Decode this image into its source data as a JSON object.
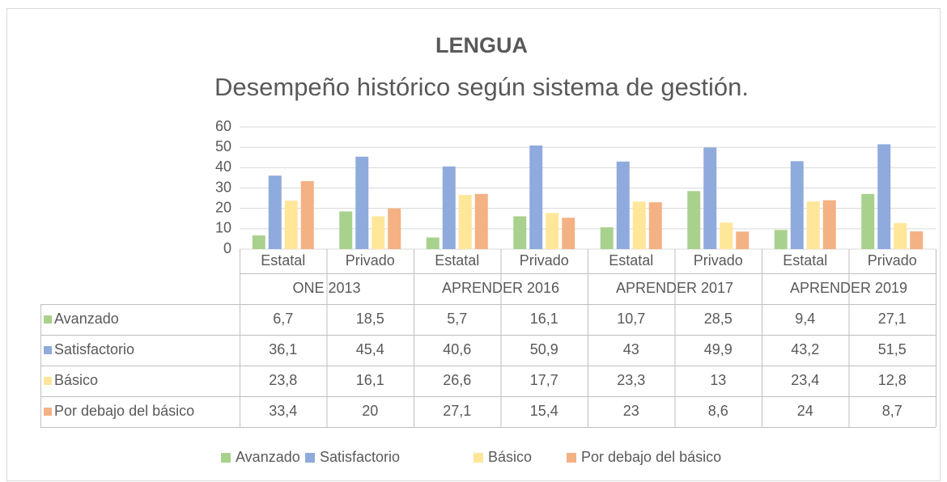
{
  "chart_data": {
    "type": "bar",
    "title": "LENGUA",
    "subtitle": "Desempeño histórico según sistema de gestión.",
    "categories": [
      "Estatal",
      "Privado",
      "Estatal",
      "Privado",
      "Estatal",
      "Privado",
      "Estatal",
      "Privado"
    ],
    "groups": [
      "ONE 2013",
      "APRENDER 2016",
      "APRENDER 2017",
      "APRENDER 2019"
    ],
    "series": [
      {
        "name": "Avanzado",
        "color": "#a9d18e",
        "values": [
          6.7,
          18.5,
          5.7,
          16.1,
          10.7,
          28.5,
          9.4,
          27.1
        ],
        "value_labels": [
          "6,7",
          "18,5",
          "5,7",
          "16,1",
          "10,7",
          "28,5",
          "9,4",
          "27,1"
        ]
      },
      {
        "name": "Satisfactorio",
        "color": "#8faadc",
        "values": [
          36.1,
          45.4,
          40.6,
          50.9,
          43,
          49.9,
          43.2,
          51.5
        ],
        "value_labels": [
          "36,1",
          "45,4",
          "40,6",
          "50,9",
          "43",
          "49,9",
          "43,2",
          "51,5"
        ]
      },
      {
        "name": "Básico",
        "color": "#ffe699",
        "values": [
          23.8,
          16.1,
          26.6,
          17.7,
          23.3,
          13,
          23.4,
          12.8
        ],
        "value_labels": [
          "23,8",
          "16,1",
          "26,6",
          "17,7",
          "23,3",
          "13",
          "23,4",
          "12,8"
        ]
      },
      {
        "name": "Por debajo del básico",
        "color": "#f4b183",
        "values": [
          33.4,
          20,
          27.1,
          15.4,
          23,
          8.6,
          24,
          8.7
        ],
        "value_labels": [
          "33,4",
          "20",
          "27,1",
          "15,4",
          "23",
          "8,6",
          "24",
          "8,7"
        ]
      }
    ],
    "ylim": [
      0,
      60
    ],
    "yticks": [
      0,
      10,
      20,
      30,
      40,
      50,
      60
    ],
    "grid": true
  }
}
